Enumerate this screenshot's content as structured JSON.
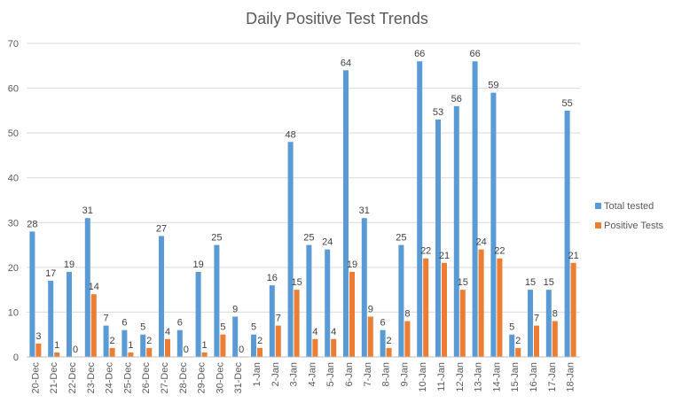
{
  "chart_data": {
    "type": "bar",
    "title": "Daily Positive Test Trends",
    "categories": [
      "20-Dec",
      "21-Dec",
      "22-Dec",
      "23-Dec",
      "24-Dec",
      "25-Dec",
      "26-Dec",
      "27-Dec",
      "28-Dec",
      "29-Dec",
      "30-Dec",
      "31-Dec",
      "1-Jan",
      "2-Jan",
      "3-Jan",
      "4-Jan",
      "5-Jan",
      "6-Jan",
      "7-Jan",
      "8-Jan",
      "9-Jan",
      "10-Jan",
      "11-Jan",
      "12-Jan",
      "13-Jan",
      "14-Jan",
      "15-Jan",
      "16-Jan",
      "17-Jan",
      "18-Jan"
    ],
    "series": [
      {
        "name": "Total tested",
        "color": "#5b9bd5",
        "values": [
          28,
          17,
          19,
          31,
          7,
          6,
          5,
          27,
          6,
          19,
          25,
          9,
          5,
          16,
          48,
          25,
          24,
          64,
          31,
          6,
          25,
          66,
          53,
          56,
          66,
          59,
          5,
          15,
          15,
          55
        ]
      },
      {
        "name": "Positive Tests",
        "color": "#ed7d31",
        "values": [
          3,
          1,
          0,
          14,
          2,
          1,
          2,
          4,
          0,
          1,
          5,
          0,
          2,
          7,
          15,
          4,
          4,
          19,
          9,
          2,
          8,
          22,
          21,
          15,
          24,
          22,
          2,
          7,
          8,
          21
        ]
      }
    ],
    "ylim": [
      0,
      70
    ],
    "yticks": [
      0,
      10,
      20,
      30,
      40,
      50,
      60,
      70
    ],
    "xlabel": "",
    "ylabel": "",
    "grid": true,
    "legend_position": "right",
    "data_labels": true
  }
}
